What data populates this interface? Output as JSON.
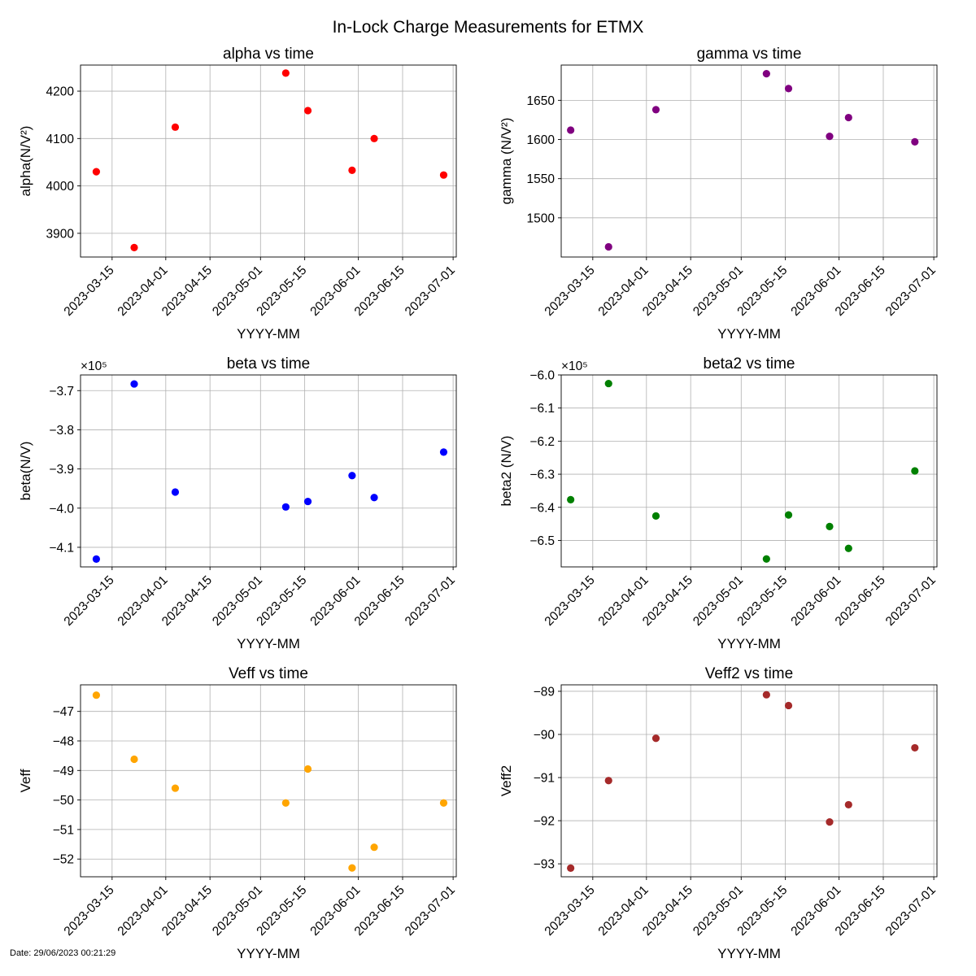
{
  "figure": {
    "title": "In-Lock Charge Measurements for ETMX",
    "footer": "Date: 29/06/2023 00:21:29"
  },
  "chart_data": [
    {
      "type": "scatter",
      "title": "alpha vs time",
      "xlabel": "YYYY-MM",
      "ylabel": "alpha(N/V²)",
      "multiplier": "",
      "color": "#ff0000",
      "xlim": [
        "2023-03-05",
        "2023-07-02"
      ],
      "xticks": [
        "2023-03-15",
        "2023-04-01",
        "2023-04-15",
        "2023-05-01",
        "2023-05-15",
        "2023-06-01",
        "2023-06-15",
        "2023-07-01"
      ],
      "ylim": [
        3850,
        4255
      ],
      "yticks": [
        3900,
        4000,
        4100,
        4200
      ],
      "yticklabels": [
        "3900",
        "4000",
        "4100",
        "4200"
      ],
      "grid": true,
      "x": [
        "2023-03-10",
        "2023-03-22",
        "2023-04-04",
        "2023-05-09",
        "2023-05-16",
        "2023-05-30",
        "2023-06-06",
        "2023-06-28"
      ],
      "y": [
        4030,
        3870,
        4124,
        4238,
        4159,
        4033,
        4100,
        4023
      ]
    },
    {
      "type": "scatter",
      "title": "gamma vs time",
      "xlabel": "YYYY-MM",
      "ylabel": "gamma (N/V²)",
      "multiplier": "",
      "color": "#800080",
      "xlim": [
        "2023-03-05",
        "2023-07-02"
      ],
      "xticks": [
        "2023-03-15",
        "2023-04-01",
        "2023-04-15",
        "2023-05-01",
        "2023-05-15",
        "2023-06-01",
        "2023-06-15",
        "2023-07-01"
      ],
      "ylim": [
        1450,
        1695
      ],
      "yticks": [
        1500,
        1550,
        1600,
        1650
      ],
      "yticklabels": [
        "1500",
        "1550",
        "1600",
        "1650"
      ],
      "grid": true,
      "x": [
        "2023-03-08",
        "2023-03-20",
        "2023-04-04",
        "2023-05-09",
        "2023-05-16",
        "2023-05-29",
        "2023-06-04",
        "2023-06-25"
      ],
      "y": [
        1612,
        1463,
        1638,
        1684,
        1665,
        1604,
        1628,
        1597
      ]
    },
    {
      "type": "scatter",
      "title": "beta vs time",
      "xlabel": "YYYY-MM",
      "ylabel": "beta(N/V)",
      "multiplier": "×10⁵",
      "color": "#0000ff",
      "xlim": [
        "2023-03-05",
        "2023-07-02"
      ],
      "xticks": [
        "2023-03-15",
        "2023-04-01",
        "2023-04-15",
        "2023-05-01",
        "2023-05-15",
        "2023-06-01",
        "2023-06-15",
        "2023-07-01"
      ],
      "ylim": [
        -4.15,
        -3.66
      ],
      "yticks": [
        -4.1,
        -4.0,
        -3.9,
        -3.8,
        -3.7
      ],
      "yticklabels": [
        "−4.1",
        "−4.0",
        "−3.9",
        "−3.8",
        "−3.7"
      ],
      "grid": true,
      "x": [
        "2023-03-10",
        "2023-03-22",
        "2023-04-04",
        "2023-05-09",
        "2023-05-16",
        "2023-05-30",
        "2023-06-06",
        "2023-06-28"
      ],
      "y": [
        -4.13,
        -3.683,
        -3.959,
        -3.997,
        -3.983,
        -3.917,
        -3.973,
        -3.857
      ]
    },
    {
      "type": "scatter",
      "title": "beta2 vs time",
      "xlabel": "YYYY-MM",
      "ylabel": "beta2 (N/V)",
      "multiplier": "×10⁵",
      "color": "#008000",
      "xlim": [
        "2023-03-05",
        "2023-07-02"
      ],
      "xticks": [
        "2023-03-15",
        "2023-04-01",
        "2023-04-15",
        "2023-05-01",
        "2023-05-15",
        "2023-06-01",
        "2023-06-15",
        "2023-07-01"
      ],
      "ylim": [
        -6.58,
        -6.0
      ],
      "yticks": [
        -6.5,
        -6.4,
        -6.3,
        -6.2,
        -6.1,
        -6.0
      ],
      "yticklabels": [
        "−6.5",
        "−6.4",
        "−6.3",
        "−6.2",
        "−6.1",
        "−6.0"
      ],
      "grid": true,
      "x": [
        "2023-03-08",
        "2023-03-20",
        "2023-04-04",
        "2023-05-09",
        "2023-05-16",
        "2023-05-29",
        "2023-06-04",
        "2023-06-25"
      ],
      "y": [
        -6.377,
        -6.026,
        -6.426,
        -6.556,
        -6.423,
        -6.458,
        -6.524,
        -6.29
      ]
    },
    {
      "type": "scatter",
      "title": "Veff vs time",
      "xlabel": "YYYY-MM",
      "ylabel": "Veff",
      "multiplier": "",
      "color": "#ffa500",
      "xlim": [
        "2023-03-05",
        "2023-07-02"
      ],
      "xticks": [
        "2023-03-15",
        "2023-04-01",
        "2023-04-15",
        "2023-05-01",
        "2023-05-15",
        "2023-06-01",
        "2023-06-15",
        "2023-07-01"
      ],
      "ylim": [
        -52.6,
        -46.1
      ],
      "yticks": [
        -52,
        -51,
        -50,
        -49,
        -48,
        -47
      ],
      "yticklabels": [
        "−52",
        "−51",
        "−50",
        "−49",
        "−48",
        "−47"
      ],
      "grid": true,
      "x": [
        "2023-03-10",
        "2023-03-22",
        "2023-04-04",
        "2023-05-09",
        "2023-05-16",
        "2023-05-30",
        "2023-06-06",
        "2023-06-28"
      ],
      "y": [
        -46.45,
        -48.62,
        -49.6,
        -50.1,
        -48.95,
        -52.3,
        -51.6,
        -50.1
      ]
    },
    {
      "type": "scatter",
      "title": "Veff2 vs time",
      "xlabel": "YYYY-MM",
      "ylabel": "Veff2",
      "multiplier": "",
      "color": "#a52a2a",
      "xlim": [
        "2023-03-05",
        "2023-07-02"
      ],
      "xticks": [
        "2023-03-15",
        "2023-04-01",
        "2023-04-15",
        "2023-05-01",
        "2023-05-15",
        "2023-06-01",
        "2023-06-15",
        "2023-07-01"
      ],
      "ylim": [
        -93.3,
        -88.85
      ],
      "yticks": [
        -93,
        -92,
        -91,
        -90,
        -89
      ],
      "yticklabels": [
        "−93",
        "−92",
        "−91",
        "−90",
        "−89"
      ],
      "grid": true,
      "x": [
        "2023-03-08",
        "2023-03-20",
        "2023-04-04",
        "2023-05-09",
        "2023-05-16",
        "2023-05-29",
        "2023-06-04",
        "2023-06-25"
      ],
      "y": [
        -93.1,
        -91.07,
        -90.09,
        -89.08,
        -89.33,
        -92.03,
        -91.63,
        -90.31
      ]
    }
  ]
}
